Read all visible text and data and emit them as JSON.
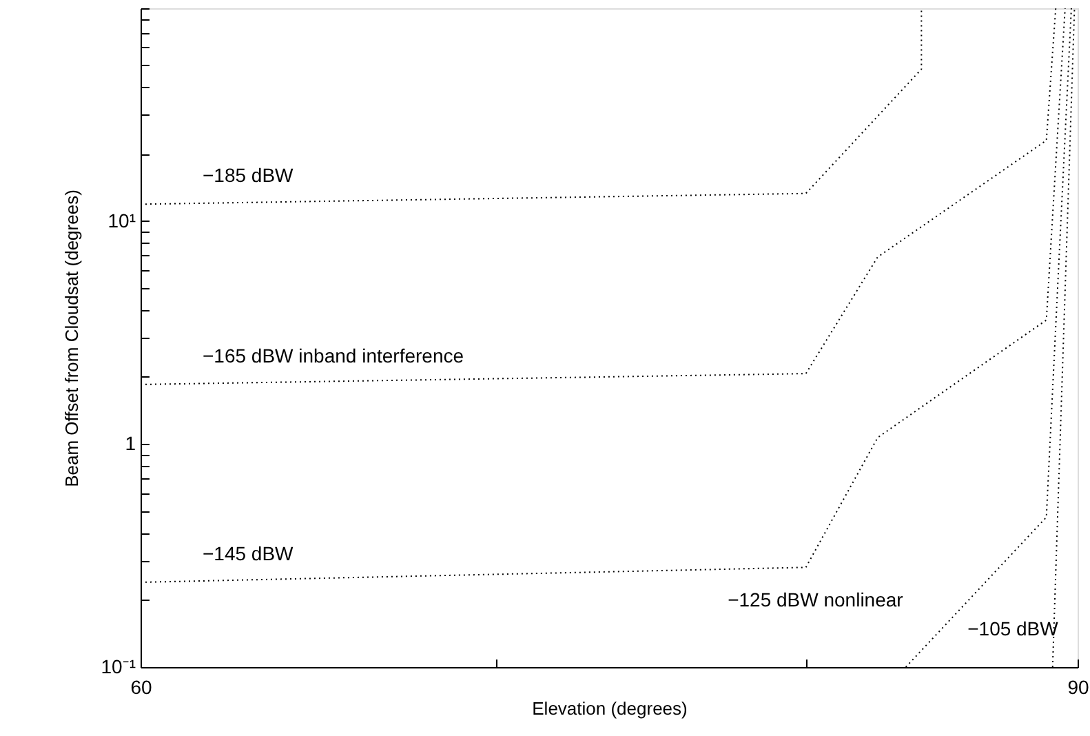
{
  "chart_data": {
    "type": "line",
    "xlabel": "Elevation (degrees)",
    "ylabel": "Beam Offset from Cloudsat (degrees)",
    "log": "y",
    "grid": false,
    "marker": "none",
    "line_style": "dotted",
    "xlim": [
      60,
      90
    ],
    "xticks": [
      60,
      {
        "value": 71.4,
        "label": null
      },
      {
        "value": 81.3,
        "label": null
      },
      90
    ],
    "ylim": [
      0.1,
      90
    ],
    "yticks": [
      {
        "value": 0.1,
        "label": "10⁻¹"
      },
      {
        "value": 0.2,
        "label": null
      },
      {
        "value": 0.3,
        "label": null
      },
      {
        "value": 0.4,
        "label": null
      },
      {
        "value": 0.5,
        "label": null
      },
      {
        "value": 0.6,
        "label": null
      },
      {
        "value": 0.7,
        "label": null
      },
      {
        "value": 0.8,
        "label": null
      },
      {
        "value": 0.9,
        "label": null
      },
      1,
      {
        "value": 2,
        "label": null
      },
      {
        "value": 3,
        "label": null
      },
      {
        "value": 4,
        "label": null
      },
      {
        "value": 5,
        "label": null
      },
      {
        "value": 6,
        "label": null
      },
      {
        "value": 7,
        "label": null
      },
      {
        "value": 8,
        "label": null
      },
      {
        "value": 9,
        "label": null
      },
      {
        "value": 10,
        "label": "10¹"
      },
      {
        "value": 20,
        "label": null
      },
      {
        "value": 30,
        "label": null
      },
      {
        "value": 40,
        "label": null
      },
      {
        "value": 50,
        "label": null
      },
      {
        "value": 60,
        "label": null
      },
      {
        "value": 70,
        "label": null
      },
      {
        "value": 80,
        "label": null
      },
      {
        "value": 90,
        "label": null
      }
    ],
    "series": [
      {
        "color": "#000000",
        "x": [
          60,
          81.3,
          85.0,
          85.0
        ],
        "values": [
          11.9,
          13.3,
          48,
          90
        ]
      },
      {
        "color": "#000000",
        "x": [
          60,
          81.3,
          83.6,
          89.0,
          89.3
        ],
        "values": [
          1.85,
          2.07,
          6.9,
          23,
          90
        ]
      },
      {
        "color": "#000000",
        "x": [
          60,
          81.3,
          83.6,
          89.0,
          89.6
        ],
        "values": [
          0.24,
          0.28,
          1.07,
          3.6,
          90
        ]
      },
      {
        "color": "#000000",
        "x": [
          84.5,
          89.0,
          89.8
        ],
        "values": [
          0.1,
          0.47,
          90
        ]
      },
      {
        "color": "#000000",
        "x": [
          89.2,
          89.9
        ],
        "values": [
          0.1,
          90
        ]
      }
    ],
    "annotations": [
      "−185 dBW",
      "−165 dBW  inband interference",
      "−145 dBW",
      "−125 dBW  nonlinear",
      "−105 dBW"
    ]
  }
}
